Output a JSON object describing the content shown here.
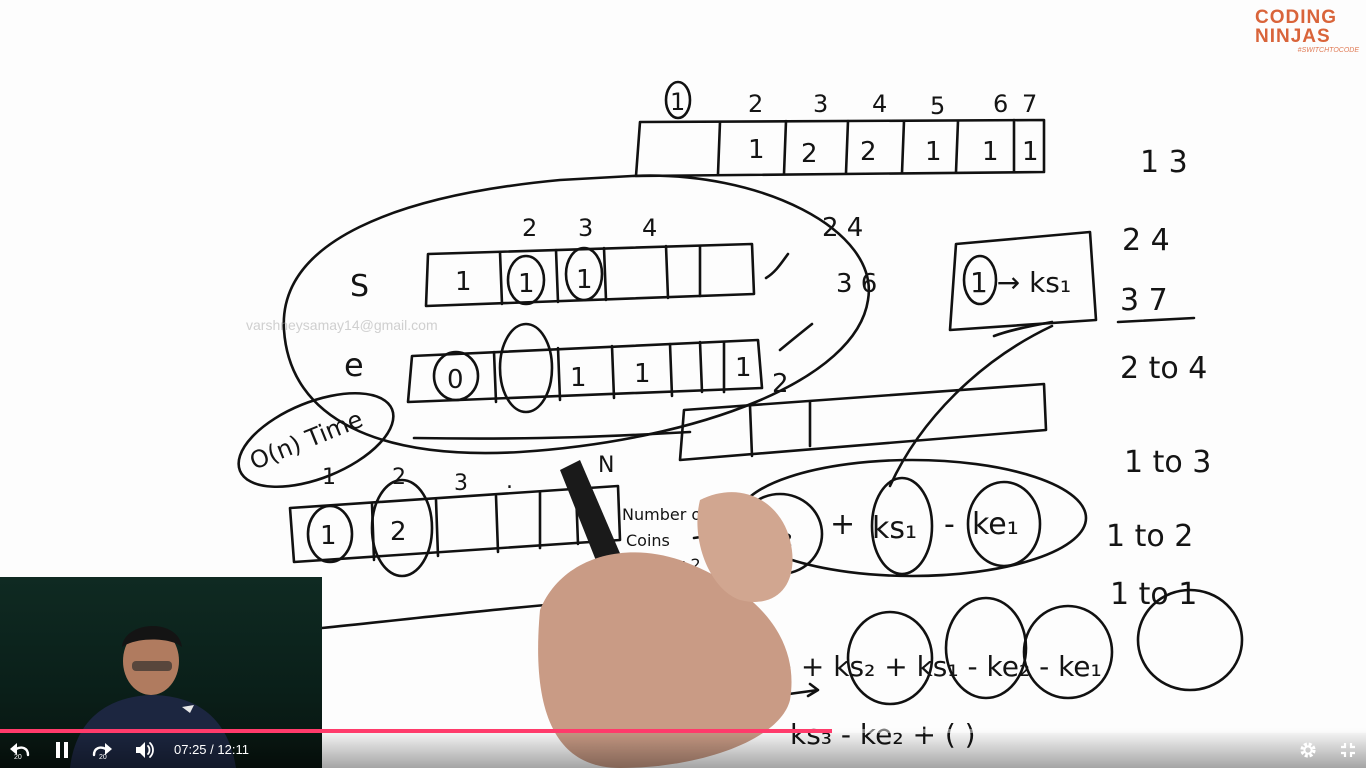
{
  "board": {
    "top_indices": [
      "1",
      "2",
      "3",
      "4",
      "5",
      "6",
      "7"
    ],
    "top_cells": [
      "1",
      "2",
      "2",
      "1",
      "1",
      "1"
    ],
    "s_label": "S",
    "s_indices": [
      "2",
      "3",
      "4"
    ],
    "s_cells": [
      "1",
      "1",
      "1"
    ],
    "e_label": "e",
    "e_cells": [
      "0",
      "1",
      "1",
      "1"
    ],
    "margin_notes": [
      "2  4",
      "3  6",
      "2"
    ],
    "complexity_note": "O(n) Time",
    "coin_indices": [
      "1",
      "2",
      "3",
      ".",
      "N"
    ],
    "coin_cells": [
      "1",
      "2"
    ],
    "number_of_coins_note": [
      "Number of",
      "Coins",
      "in Box 2"
    ],
    "formula_1": [
      "ks₂",
      "+",
      "ks₁",
      "-",
      "ke₁"
    ],
    "box_note": "1 → ks₁",
    "query_list": [
      "1   3",
      "2   4",
      "3   7",
      "2 to 4",
      "1 to 3",
      "1 to 2",
      "1 to 1"
    ],
    "lower_formula": "ks₃ + ks₂ + ks₁ - ke₂ - ke₁",
    "bottom_formula": "ks₃ - ke₂ + (    )",
    "stray_number": "3"
  },
  "watermark": "varshneysamay14@gmail.com",
  "logo": {
    "line1": "CODING",
    "line2": "NINJAS",
    "tagline": "#SWITCHTOCODE"
  },
  "player": {
    "current_time": "07:25",
    "duration": "12:11",
    "time_display": "07:25 / 12:11",
    "progress": 0.609,
    "seek_back_seconds": "20",
    "seek_forward_seconds": "20",
    "accent_color": "#ff3b6b",
    "icons": {
      "rewind": "rewind-icon",
      "pause": "pause-icon",
      "forward": "forward-icon",
      "volume": "volume-icon",
      "settings": "gear-icon",
      "exit_fullscreen": "exit-fullscreen-icon"
    }
  }
}
